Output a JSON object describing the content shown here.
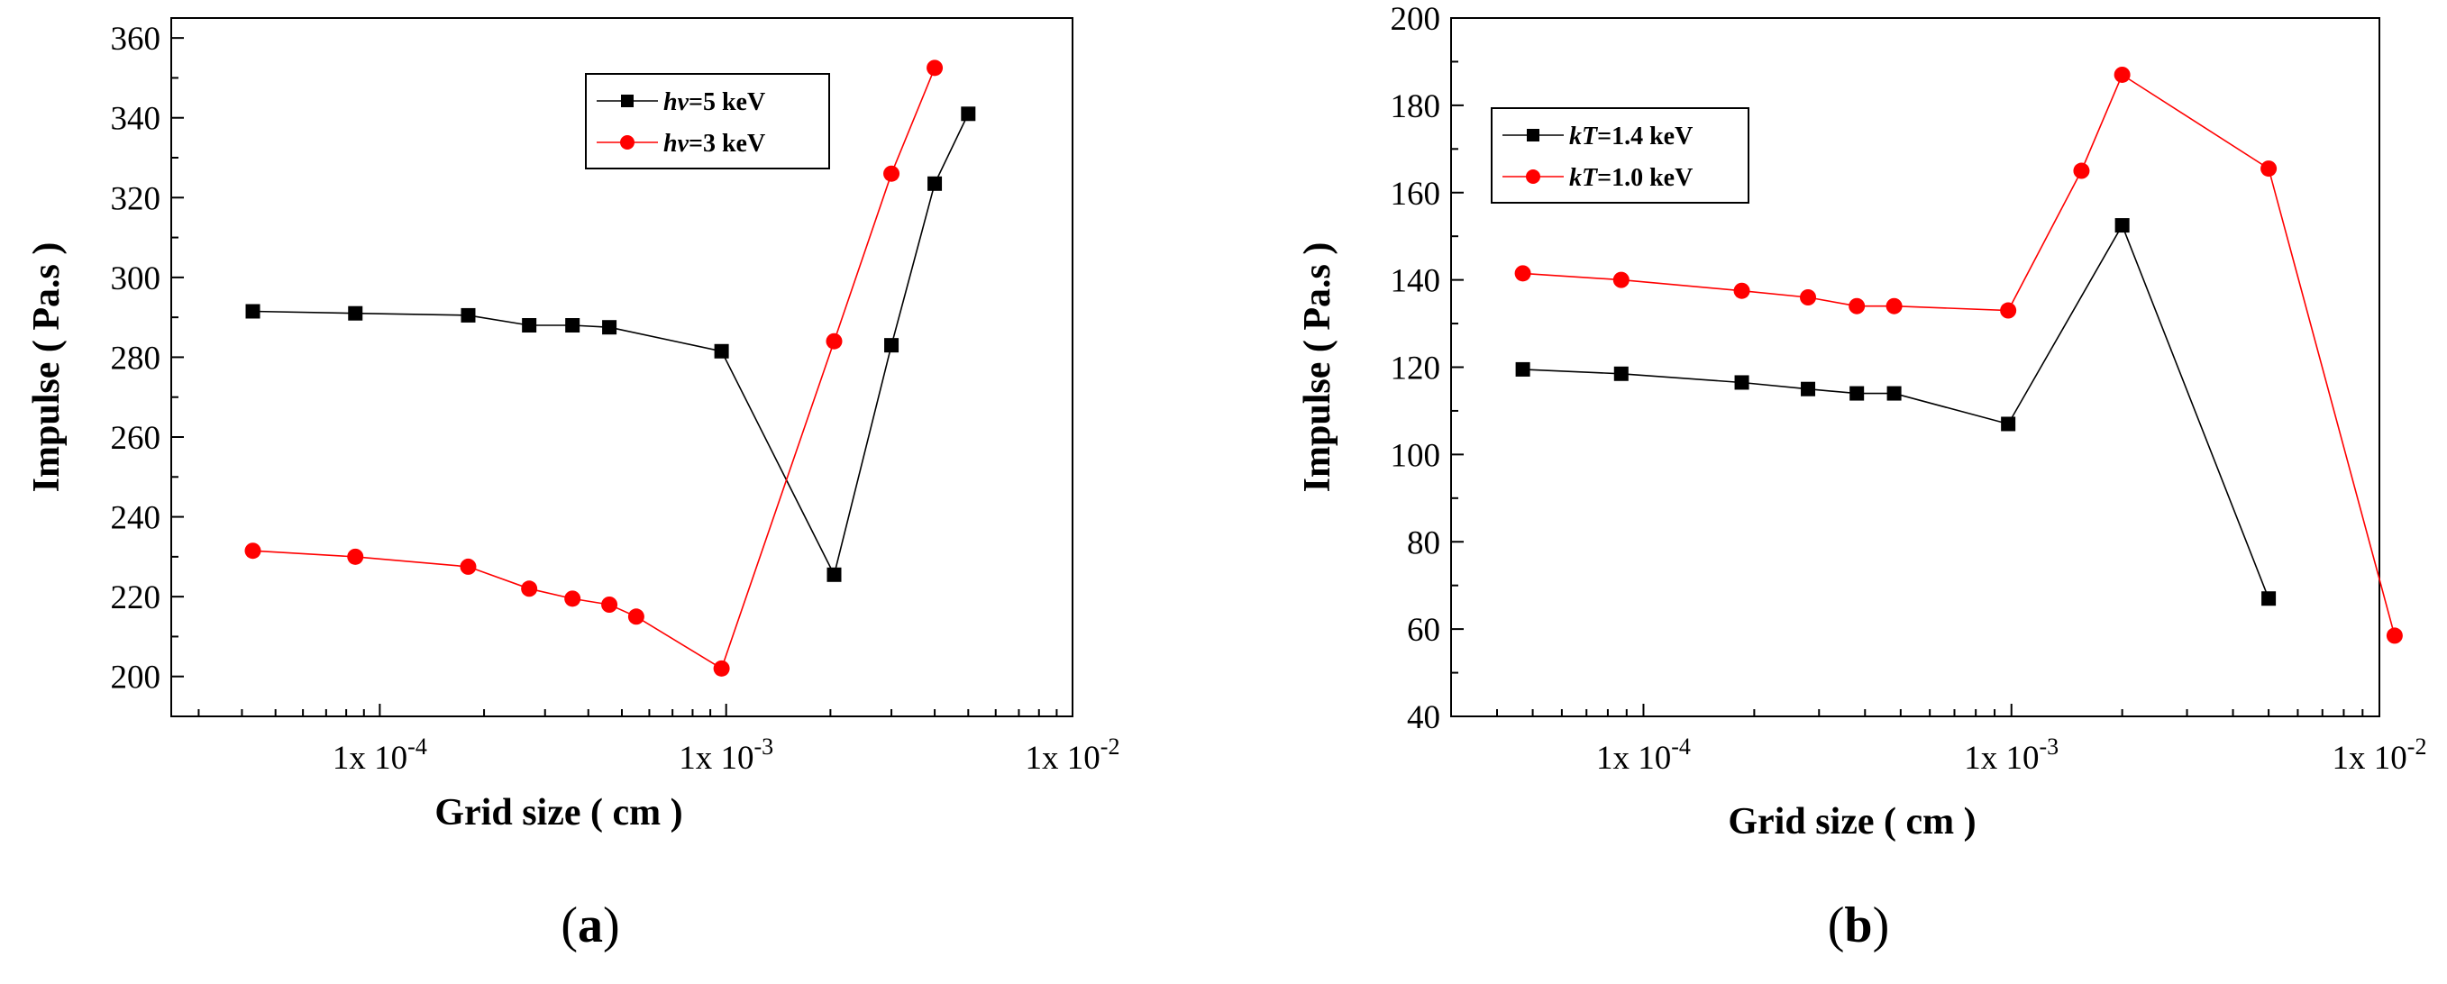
{
  "chart_data": [
    {
      "type": "line",
      "panel_label": "(a)",
      "panel_letter": "a",
      "xscale": "log",
      "xlabel": "Grid size ( cm )",
      "ylabel": "Impulse ( Pa.s )",
      "xlim": [
        2.5e-05,
        0.01
      ],
      "ylim": [
        190,
        365
      ],
      "xticks": [
        {
          "value": 0.0001,
          "base": "1x 10",
          "exp": "-4"
        },
        {
          "value": 0.001,
          "base": "1x 10",
          "exp": "-3"
        },
        {
          "value": 0.01,
          "base": "1x 10",
          "exp": "-2"
        }
      ],
      "yticks": [
        200,
        220,
        240,
        260,
        280,
        300,
        320,
        340,
        360
      ],
      "legend_position": "top-right",
      "series": [
        {
          "name_italic": "hv",
          "name_rest": "=5 keV",
          "color": "#000000",
          "marker": "square",
          "points": [
            [
              4.3e-05,
              291.5
            ],
            [
              8.5e-05,
              291
            ],
            [
              0.00018,
              290.5
            ],
            [
              0.00027,
              288
            ],
            [
              0.00036,
              288
            ],
            [
              0.00046,
              287.5
            ],
            [
              0.00097,
              281.5
            ],
            [
              0.00205,
              225.5
            ],
            [
              0.003,
              283
            ],
            [
              0.004,
              323.5
            ],
            [
              0.005,
              341
            ]
          ]
        },
        {
          "name_italic": "hv",
          "name_rest": "=3 keV",
          "color": "#ff0000",
          "marker": "circle",
          "points": [
            [
              4.3e-05,
              231.5
            ],
            [
              8.5e-05,
              230
            ],
            [
              0.00018,
              227.5
            ],
            [
              0.00027,
              222
            ],
            [
              0.00036,
              219.5
            ],
            [
              0.00046,
              218
            ],
            [
              0.00055,
              215
            ],
            [
              0.00097,
              202
            ],
            [
              0.00205,
              284
            ],
            [
              0.003,
              326
            ],
            [
              0.004,
              352.5
            ]
          ]
        }
      ]
    },
    {
      "type": "line",
      "panel_label": "(b)",
      "panel_letter": "b",
      "xscale": "log",
      "xlabel": "Grid size ( cm )",
      "ylabel": "Impulse ( Pa.s )",
      "xlim": [
        3e-05,
        0.01
      ],
      "ylim": [
        40,
        200
      ],
      "xticks": [
        {
          "value": 0.0001,
          "base": "1x 10",
          "exp": "-4"
        },
        {
          "value": 0.001,
          "base": "1x 10",
          "exp": "-3"
        },
        {
          "value": 0.01,
          "base": "1x 10",
          "exp": "-2"
        }
      ],
      "yticks": [
        40,
        60,
        80,
        100,
        120,
        140,
        160,
        180,
        200
      ],
      "legend_position": "top-left",
      "series": [
        {
          "name_italic": "kT",
          "name_rest": "=1.4 keV",
          "color": "#000000",
          "marker": "square",
          "points": [
            [
              4.7e-05,
              119.5
            ],
            [
              8.7e-05,
              118.5
            ],
            [
              0.000185,
              116.5
            ],
            [
              0.00028,
              115
            ],
            [
              0.00038,
              114
            ],
            [
              0.00048,
              114
            ],
            [
              0.00098,
              107
            ],
            [
              0.002,
              152.5
            ],
            [
              0.005,
              67
            ]
          ]
        },
        {
          "name_italic": "kT",
          "name_rest": "=1.0 keV",
          "color": "#ff0000",
          "marker": "circle",
          "points": [
            [
              4.7e-05,
              141.5
            ],
            [
              8.7e-05,
              140
            ],
            [
              0.000185,
              137.5
            ],
            [
              0.00028,
              136
            ],
            [
              0.00038,
              134
            ],
            [
              0.00048,
              134
            ],
            [
              0.00098,
              133
            ],
            [
              0.00155,
              165
            ],
            [
              0.002,
              187
            ],
            [
              0.005,
              165.5
            ],
            [
              0.011,
              58.5
            ]
          ]
        }
      ]
    }
  ]
}
